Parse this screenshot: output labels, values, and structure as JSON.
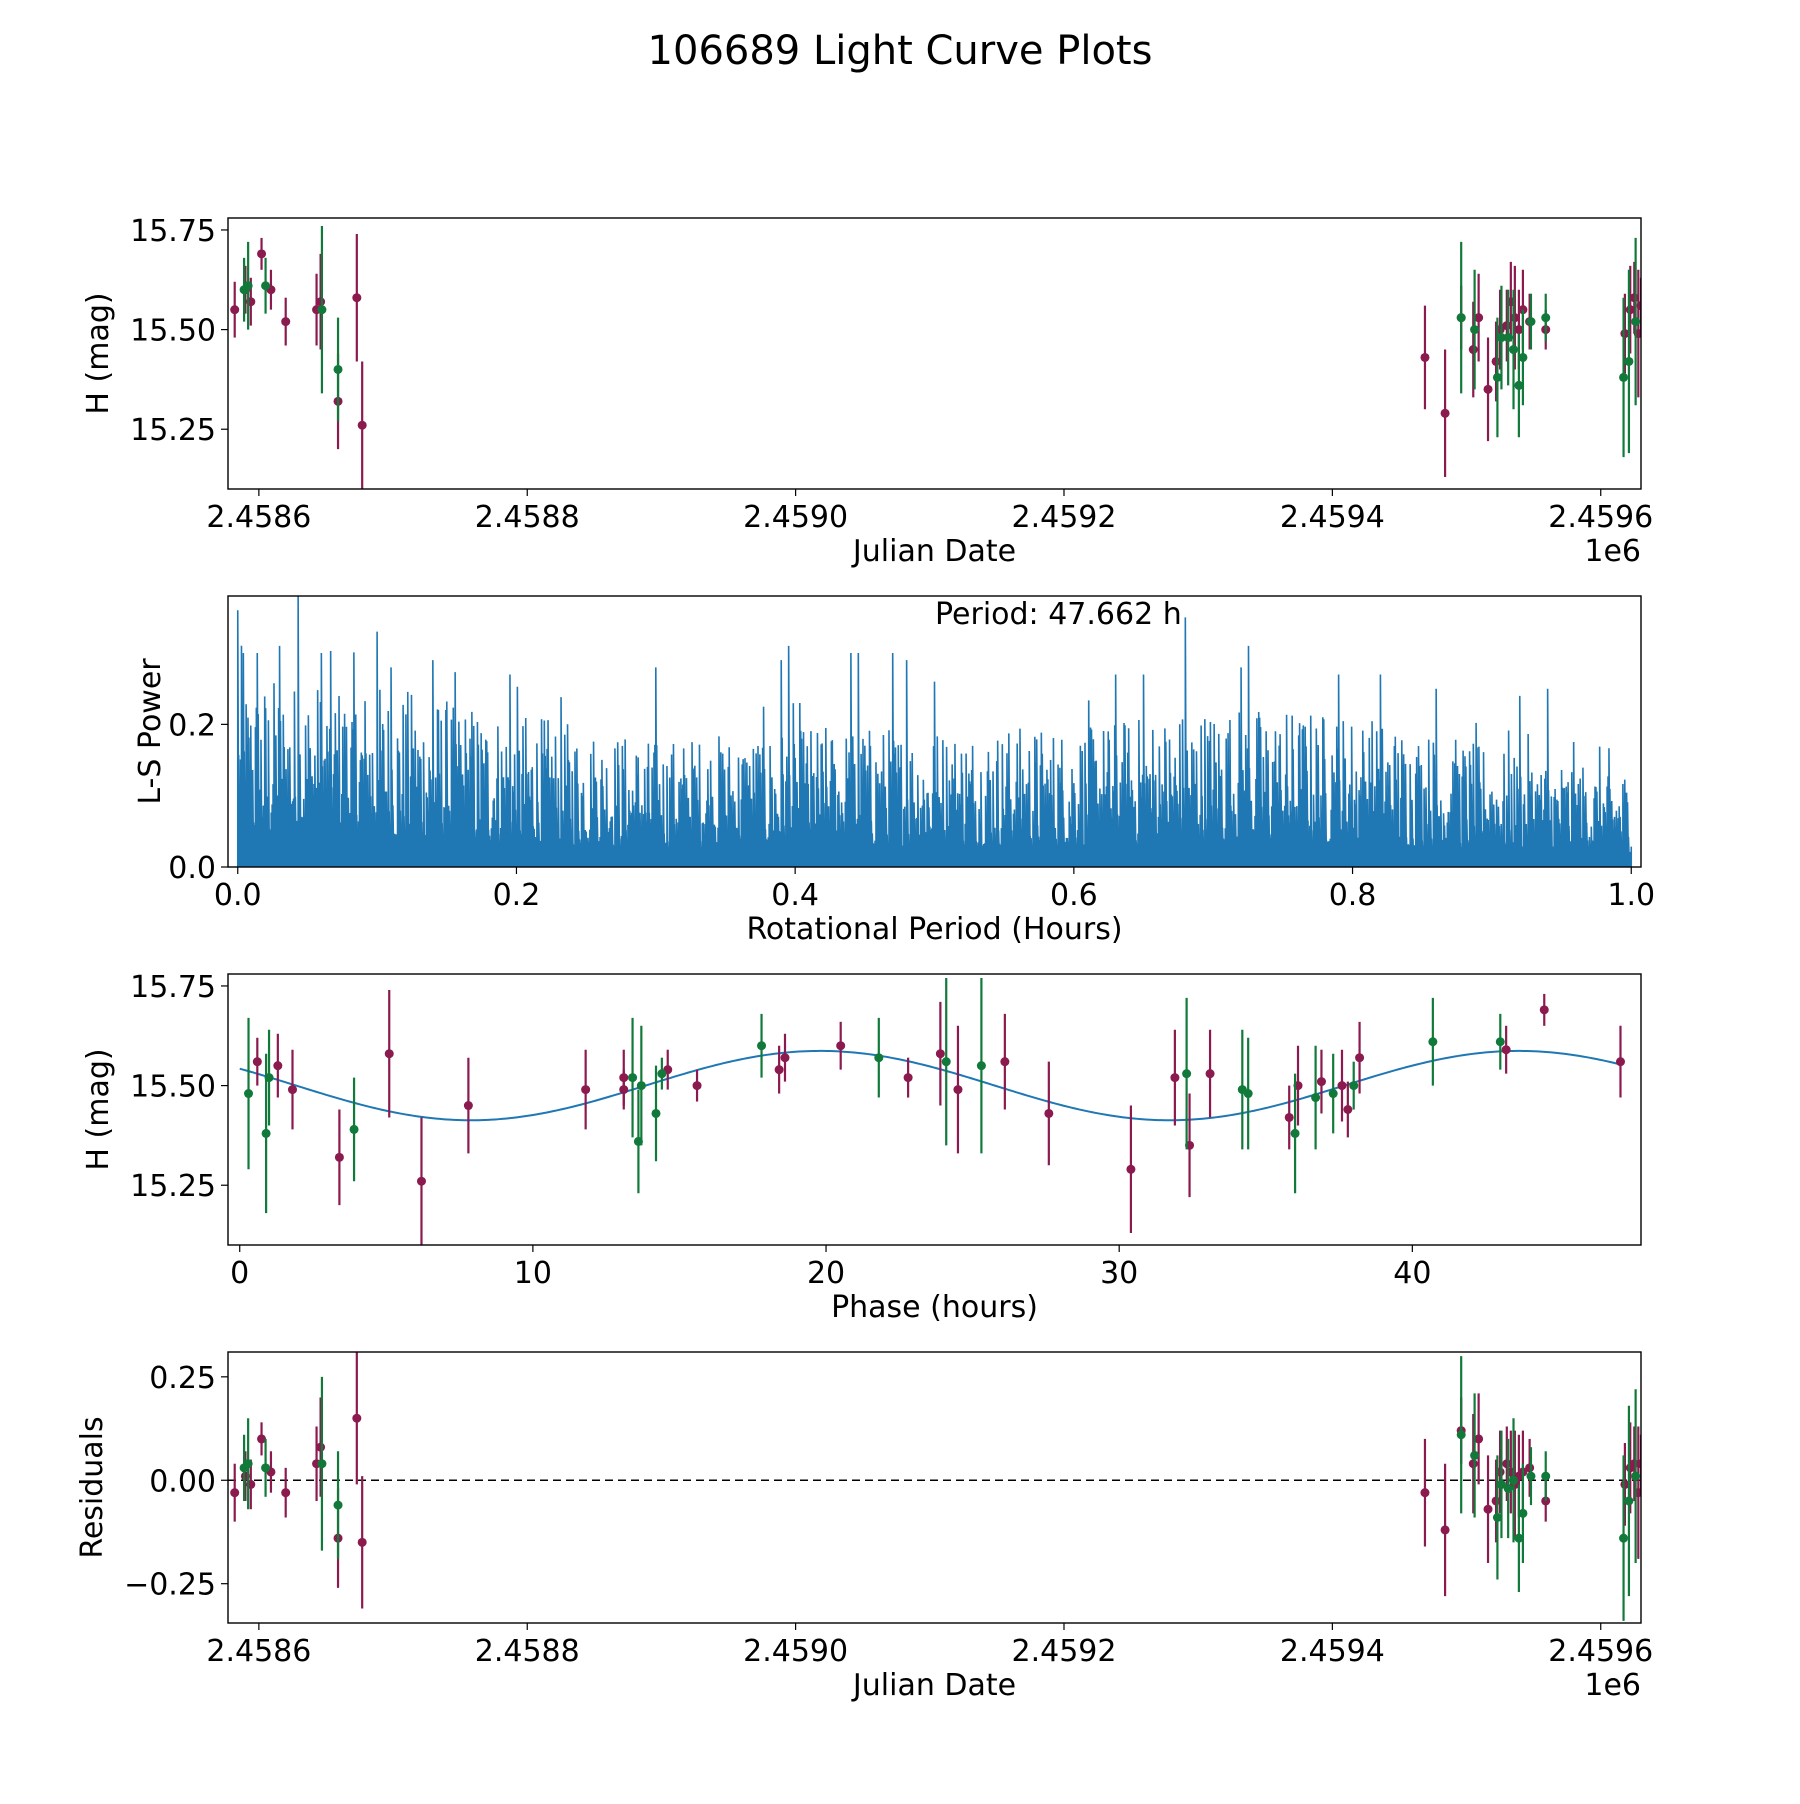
{
  "figure_title": "106689 Light Curve Plots",
  "colors": {
    "maroon": "#8b1a4f",
    "green": "#117a3a",
    "line": "#1f77b4"
  },
  "chart_data": [
    {
      "id": "lc",
      "type": "scatter",
      "title": "",
      "xlabel": "Julian Date",
      "ylabel": "H (mag)",
      "x_offset_label": "1e6",
      "xlim": [
        2458577,
        2459630
      ],
      "ylim": [
        15.1,
        15.78
      ],
      "xticks": [
        2458600,
        2458800,
        2459000,
        2459200,
        2459400,
        2459600
      ],
      "xtick_labels": [
        "2.4586",
        "2.4588",
        "2.4590",
        "2.4592",
        "2.4594",
        "2.4596"
      ],
      "yticks": [
        15.25,
        15.5,
        15.75
      ],
      "ytick_labels": [
        "15.25",
        "15.50",
        "15.75"
      ],
      "series": [
        {
          "name": "maroon",
          "color": "#8b1a4f",
          "points": [
            [
              2458582,
              15.55,
              0.07
            ],
            [
              2458590,
              15.6,
              0.06
            ],
            [
              2458594,
              15.57,
              0.06
            ],
            [
              2458602,
              15.69,
              0.04
            ],
            [
              2458609,
              15.6,
              0.05
            ],
            [
              2458620,
              15.52,
              0.06
            ],
            [
              2458643,
              15.55,
              0.09
            ],
            [
              2458646,
              15.57,
              0.12
            ],
            [
              2458659,
              15.32,
              0.12
            ],
            [
              2458673,
              15.58,
              0.16
            ],
            [
              2458677,
              15.26,
              0.16
            ],
            [
              2459469,
              15.43,
              0.13
            ],
            [
              2459484,
              15.29,
              0.16
            ],
            [
              2459496,
              15.53,
              0.08
            ],
            [
              2459505,
              15.45,
              0.12
            ],
            [
              2459509,
              15.53,
              0.11
            ],
            [
              2459516,
              15.35,
              0.13
            ],
            [
              2459522,
              15.42,
              0.1
            ],
            [
              2459525,
              15.5,
              0.1
            ],
            [
              2459530,
              15.51,
              0.09
            ],
            [
              2459533,
              15.57,
              0.1
            ],
            [
              2459536,
              15.53,
              0.13
            ],
            [
              2459539,
              15.5,
              0.1
            ],
            [
              2459542,
              15.55,
              0.1
            ],
            [
              2459547,
              15.52,
              0.07
            ],
            [
              2459559,
              15.5,
              0.05
            ],
            [
              2459618,
              15.49,
              0.1
            ],
            [
              2459622,
              15.55,
              0.11
            ],
            [
              2459625,
              15.58,
              0.09
            ],
            [
              2459628,
              15.49,
              0.16
            ],
            [
              2459630,
              15.56,
              0.07
            ]
          ]
        },
        {
          "name": "green",
          "color": "#117a3a",
          "points": [
            [
              2458589,
              15.6,
              0.08
            ],
            [
              2458592,
              15.61,
              0.11
            ],
            [
              2458605,
              15.61,
              0.07
            ],
            [
              2458647,
              15.55,
              0.21
            ],
            [
              2458659,
              15.4,
              0.13
            ],
            [
              2459496,
              15.53,
              0.19
            ],
            [
              2459506,
              15.5,
              0.15
            ],
            [
              2459523,
              15.38,
              0.15
            ],
            [
              2459526,
              15.48,
              0.13
            ],
            [
              2459531,
              15.48,
              0.12
            ],
            [
              2459535,
              15.45,
              0.15
            ],
            [
              2459539,
              15.36,
              0.13
            ],
            [
              2459542,
              15.43,
              0.12
            ],
            [
              2459548,
              15.52,
              0.07
            ],
            [
              2459559,
              15.53,
              0.06
            ],
            [
              2459617,
              15.38,
              0.2
            ],
            [
              2459621,
              15.42,
              0.23
            ],
            [
              2459626,
              15.52,
              0.21
            ]
          ]
        }
      ]
    },
    {
      "id": "ls",
      "type": "line",
      "title": "",
      "xlabel": "Rotational Period (Hours)",
      "ylabel": "L-S Power",
      "annotation": "Period: 47.662 h",
      "xlim": [
        -0.007,
        1.007
      ],
      "ylim": [
        0,
        0.38
      ],
      "xticks": [
        0.0,
        0.2,
        0.4,
        0.6,
        0.8,
        1.0
      ],
      "xtick_labels": [
        "0.0",
        "0.2",
        "0.4",
        "0.6",
        "0.8",
        "1.0"
      ],
      "yticks": [
        0.0,
        0.2
      ],
      "ytick_labels": [
        "0.0",
        "0.2"
      ],
      "n_samples": 1500,
      "envelope": [
        [
          0.0,
          0.27
        ],
        [
          0.1,
          0.26
        ],
        [
          0.2,
          0.22
        ],
        [
          0.3,
          0.18
        ],
        [
          0.4,
          0.2
        ],
        [
          0.5,
          0.2
        ],
        [
          0.6,
          0.2
        ],
        [
          0.7,
          0.23
        ],
        [
          0.8,
          0.22
        ],
        [
          0.9,
          0.17
        ],
        [
          1.0,
          0.14
        ]
      ],
      "peaks": [
        [
          0.0,
          0.36
        ],
        [
          0.004,
          0.3
        ],
        [
          0.014,
          0.3
        ],
        [
          0.03,
          0.31
        ],
        [
          0.043,
          0.38
        ],
        [
          0.06,
          0.3
        ],
        [
          0.1,
          0.33
        ],
        [
          0.11,
          0.28
        ],
        [
          0.14,
          0.29
        ],
        [
          0.195,
          0.27
        ],
        [
          0.3,
          0.28
        ],
        [
          0.39,
          0.29
        ],
        [
          0.395,
          0.31
        ],
        [
          0.44,
          0.3
        ],
        [
          0.445,
          0.3
        ],
        [
          0.47,
          0.3
        ],
        [
          0.48,
          0.29
        ],
        [
          0.5,
          0.26
        ],
        [
          0.63,
          0.27
        ],
        [
          0.65,
          0.27
        ],
        [
          0.68,
          0.35
        ],
        [
          0.72,
          0.28
        ],
        [
          0.725,
          0.31
        ],
        [
          0.79,
          0.27
        ],
        [
          0.82,
          0.27
        ],
        [
          0.86,
          0.25
        ],
        [
          0.92,
          0.24
        ],
        [
          0.94,
          0.25
        ]
      ]
    },
    {
      "id": "phase",
      "type": "scatter",
      "title": "",
      "xlabel": "Phase (hours)",
      "ylabel": "H (mag)",
      "xlim": [
        -0.4,
        47.8
      ],
      "ylim": [
        15.1,
        15.78
      ],
      "xticks": [
        0,
        10,
        20,
        30,
        40
      ],
      "xtick_labels": [
        "0",
        "10",
        "20",
        "30",
        "40"
      ],
      "yticks": [
        15.25,
        15.5,
        15.75
      ],
      "ytick_labels": [
        "15.25",
        "15.50",
        "15.75"
      ],
      "fit": {
        "period": 23.831,
        "mean": 15.5,
        "amplitude": 0.087,
        "phase_shift": 1.8
      },
      "series": [
        {
          "name": "maroon",
          "color": "#8b1a4f",
          "points": [
            [
              0.6,
              15.56,
              0.06
            ],
            [
              1.3,
              15.55,
              0.08
            ],
            [
              1.8,
              15.49,
              0.1
            ],
            [
              3.4,
              15.32,
              0.12
            ],
            [
              5.1,
              15.58,
              0.16
            ],
            [
              6.2,
              15.26,
              0.16
            ],
            [
              7.8,
              15.45,
              0.12
            ],
            [
              11.8,
              15.49,
              0.1
            ],
            [
              13.1,
              15.52,
              0.07
            ],
            [
              13.1,
              15.49,
              0.05
            ],
            [
              14.6,
              15.54,
              0.05
            ],
            [
              15.6,
              15.5,
              0.04
            ],
            [
              18.4,
              15.54,
              0.06
            ],
            [
              18.6,
              15.57,
              0.06
            ],
            [
              20.5,
              15.6,
              0.06
            ],
            [
              22.8,
              15.52,
              0.05
            ],
            [
              23.9,
              15.58,
              0.13
            ],
            [
              24.5,
              15.49,
              0.16
            ],
            [
              26.1,
              15.56,
              0.12
            ],
            [
              27.6,
              15.43,
              0.13
            ],
            [
              30.4,
              15.29,
              0.16
            ],
            [
              31.9,
              15.52,
              0.12
            ],
            [
              32.4,
              15.35,
              0.13
            ],
            [
              33.1,
              15.53,
              0.11
            ],
            [
              35.8,
              15.42,
              0.08
            ],
            [
              36.1,
              15.5,
              0.1
            ],
            [
              36.9,
              15.51,
              0.08
            ],
            [
              37.6,
              15.5,
              0.09
            ],
            [
              37.8,
              15.44,
              0.07
            ],
            [
              38.2,
              15.57,
              0.09
            ],
            [
              43.2,
              15.59,
              0.06
            ],
            [
              44.5,
              15.69,
              0.04
            ],
            [
              47.1,
              15.56,
              0.09
            ]
          ]
        },
        {
          "name": "green",
          "color": "#117a3a",
          "points": [
            [
              0.3,
              15.48,
              0.19
            ],
            [
              0.9,
              15.38,
              0.2
            ],
            [
              1.0,
              15.52,
              0.12
            ],
            [
              3.9,
              15.39,
              0.13
            ],
            [
              13.4,
              15.52,
              0.15
            ],
            [
              13.6,
              15.36,
              0.13
            ],
            [
              13.7,
              15.5,
              0.15
            ],
            [
              14.2,
              15.43,
              0.12
            ],
            [
              14.4,
              15.53,
              0.04
            ],
            [
              17.8,
              15.6,
              0.08
            ],
            [
              21.8,
              15.57,
              0.1
            ],
            [
              24.1,
              15.56,
              0.21
            ],
            [
              25.3,
              15.55,
              0.22
            ],
            [
              32.3,
              15.53,
              0.19
            ],
            [
              34.2,
              15.49,
              0.15
            ],
            [
              34.4,
              15.48,
              0.14
            ],
            [
              36.0,
              15.38,
              0.15
            ],
            [
              36.7,
              15.47,
              0.13
            ],
            [
              37.3,
              15.48,
              0.1
            ],
            [
              38.0,
              15.5,
              0.06
            ],
            [
              40.7,
              15.61,
              0.11
            ],
            [
              43.0,
              15.61,
              0.07
            ]
          ]
        }
      ]
    },
    {
      "id": "resid",
      "type": "scatter",
      "title": "",
      "xlabel": "Julian Date",
      "ylabel": "Residuals",
      "x_offset_label": "1e6",
      "xlim": [
        2458577,
        2459630
      ],
      "ylim": [
        -0.345,
        0.31
      ],
      "xticks": [
        2458600,
        2458800,
        2459000,
        2459200,
        2459400,
        2459600
      ],
      "xtick_labels": [
        "2.4586",
        "2.4588",
        "2.4590",
        "2.4592",
        "2.4594",
        "2.4596"
      ],
      "yticks": [
        0.25,
        0.0,
        -0.25
      ],
      "ytick_labels": [
        "0.25",
        "0.00",
        "−0.25"
      ],
      "hline": 0.0,
      "series": [
        {
          "name": "maroon",
          "color": "#8b1a4f",
          "points": [
            [
              2458582,
              -0.03,
              0.07
            ],
            [
              2458590,
              0.01,
              0.06
            ],
            [
              2458594,
              -0.01,
              0.06
            ],
            [
              2458602,
              0.1,
              0.04
            ],
            [
              2458609,
              0.02,
              0.05
            ],
            [
              2458620,
              -0.03,
              0.06
            ],
            [
              2458643,
              0.04,
              0.09
            ],
            [
              2458646,
              0.08,
              0.12
            ],
            [
              2458659,
              -0.14,
              0.12
            ],
            [
              2458673,
              0.15,
              0.16
            ],
            [
              2458677,
              -0.15,
              0.16
            ],
            [
              2459469,
              -0.03,
              0.13
            ],
            [
              2459484,
              -0.12,
              0.16
            ],
            [
              2459496,
              0.12,
              0.08
            ],
            [
              2459505,
              0.04,
              0.12
            ],
            [
              2459509,
              0.1,
              0.11
            ],
            [
              2459516,
              -0.07,
              0.13
            ],
            [
              2459522,
              -0.05,
              0.1
            ],
            [
              2459525,
              0.02,
              0.1
            ],
            [
              2459530,
              0.04,
              0.09
            ],
            [
              2459533,
              0.02,
              0.1
            ],
            [
              2459536,
              -0.01,
              0.13
            ],
            [
              2459539,
              0.01,
              0.1
            ],
            [
              2459542,
              0.02,
              0.1
            ],
            [
              2459547,
              0.03,
              0.07
            ],
            [
              2459559,
              -0.05,
              0.05
            ],
            [
              2459618,
              -0.01,
              0.1
            ],
            [
              2459622,
              0.03,
              0.11
            ],
            [
              2459625,
              0.04,
              0.09
            ],
            [
              2459628,
              -0.03,
              0.16
            ],
            [
              2459630,
              0.04,
              0.07
            ]
          ]
        },
        {
          "name": "green",
          "color": "#117a3a",
          "points": [
            [
              2458589,
              0.03,
              0.08
            ],
            [
              2458592,
              0.04,
              0.11
            ],
            [
              2458605,
              0.03,
              0.07
            ],
            [
              2458647,
              0.04,
              0.21
            ],
            [
              2458659,
              -0.06,
              0.13
            ],
            [
              2459496,
              0.11,
              0.19
            ],
            [
              2459506,
              0.06,
              0.15
            ],
            [
              2459523,
              -0.09,
              0.15
            ],
            [
              2459526,
              -0.01,
              0.13
            ],
            [
              2459531,
              -0.02,
              0.12
            ],
            [
              2459535,
              0.0,
              0.15
            ],
            [
              2459539,
              -0.14,
              0.13
            ],
            [
              2459542,
              -0.08,
              0.12
            ],
            [
              2459548,
              0.01,
              0.07
            ],
            [
              2459559,
              0.01,
              0.06
            ],
            [
              2459617,
              -0.14,
              0.2
            ],
            [
              2459621,
              -0.05,
              0.23
            ],
            [
              2459626,
              0.01,
              0.21
            ]
          ]
        }
      ]
    }
  ]
}
